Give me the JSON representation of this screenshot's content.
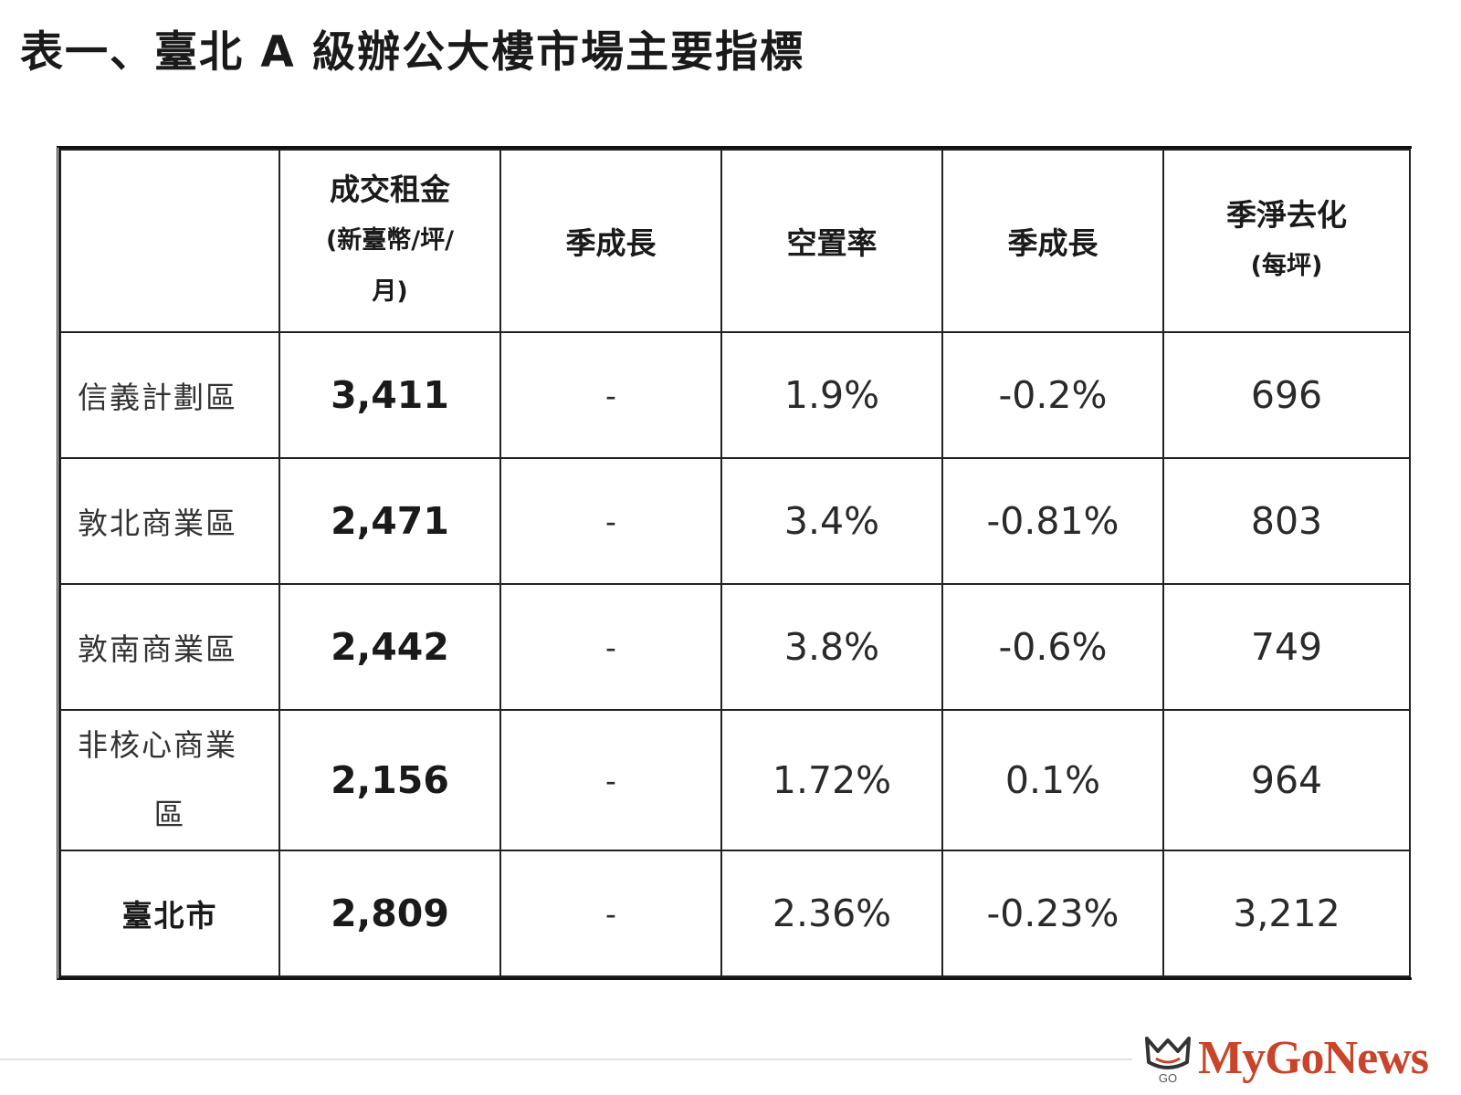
{
  "title": "表一、臺北 A 級辦公大樓市場主要指標",
  "headers": {
    "region": "",
    "rent_main": "成交租金",
    "rent_sub1": "(新臺幣/坪/",
    "rent_sub2": "月)",
    "rent_growth": "季成長",
    "vacancy": "空置率",
    "vacancy_growth": "季成長",
    "absorption_main": "季淨去化",
    "absorption_sub": "(每坪)"
  },
  "rows": [
    {
      "region": "信義計劃區",
      "rent": "3,411",
      "rent_growth": "-",
      "vacancy": "1.9%",
      "vacancy_growth": "-0.2%",
      "absorption": "696"
    },
    {
      "region": "敦北商業區",
      "rent": "2,471",
      "rent_growth": "-",
      "vacancy": "3.4%",
      "vacancy_growth": "-0.81%",
      "absorption": "803"
    },
    {
      "region": "敦南商業區",
      "rent": "2,442",
      "rent_growth": "-",
      "vacancy": "3.8%",
      "vacancy_growth": "-0.6%",
      "absorption": "749"
    },
    {
      "region_line1": "非核心商業",
      "region_line2": "區",
      "rent": "2,156",
      "rent_growth": "-",
      "vacancy": "1.72%",
      "vacancy_growth": "0.1%",
      "absorption": "964"
    },
    {
      "region": "臺北市",
      "rent": "2,809",
      "rent_growth": "-",
      "vacancy": "2.36%",
      "vacancy_growth": "-0.23%",
      "absorption": "3,212"
    }
  ],
  "watermark": {
    "text": "MyGoNews",
    "mark_text": "GO",
    "color": "#c8442a"
  }
}
